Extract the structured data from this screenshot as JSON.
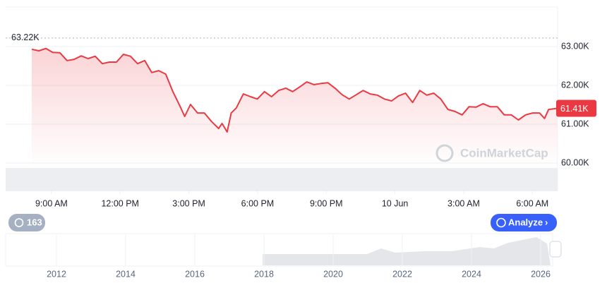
{
  "chart_data": {
    "type": "line",
    "color": "#ea3943",
    "x": [
      8.14,
      8.45,
      8.76,
      9.06,
      9.37,
      9.68,
      9.99,
      10.3,
      10.6,
      10.91,
      11.22,
      11.53,
      11.84,
      12.14,
      12.45,
      12.76,
      13.07,
      13.38,
      13.68,
      13.99,
      14.3,
      14.61,
      14.82,
      15.07,
      15.38,
      15.68,
      15.99,
      16.3,
      16.45,
      16.67,
      16.85,
      17.07,
      17.38,
      17.69,
      17.99,
      18.3,
      18.61,
      18.92,
      19.23,
      19.53,
      19.84,
      20.15,
      20.46,
      20.77,
      21.07,
      21.38,
      21.69,
      22.0,
      22.31,
      22.61,
      22.92,
      23.23,
      23.54,
      23.85,
      24.15,
      24.46,
      24.77,
      25.08,
      25.39,
      25.69,
      26.0,
      26.31,
      26.62,
      26.93,
      27.23,
      27.54,
      27.85,
      28.16,
      28.47,
      28.77,
      29.08,
      29.39,
      29.7,
      30.01,
      30.31,
      30.53,
      30.71,
      31.08
    ],
    "values": [
      62930,
      62890,
      62950,
      62850,
      62840,
      62640,
      62670,
      62760,
      62690,
      62750,
      62560,
      62600,
      62600,
      62800,
      62750,
      62560,
      62640,
      62330,
      62380,
      62290,
      61840,
      61470,
      61200,
      61510,
      61290,
      61290,
      61070,
      60890,
      61020,
      60800,
      61290,
      61420,
      61780,
      61710,
      61650,
      61840,
      61710,
      61870,
      61930,
      61840,
      61960,
      62090,
      62020,
      62050,
      62070,
      61930,
      61760,
      61650,
      61760,
      61870,
      61780,
      61750,
      61650,
      61600,
      61730,
      61800,
      61560,
      61870,
      61750,
      61800,
      61650,
      61380,
      61330,
      61240,
      61450,
      61440,
      61530,
      61450,
      61450,
      61240,
      61240,
      61110,
      61240,
      61290,
      61290,
      61150,
      61380,
      61410
    ],
    "xlim": [
      7,
      31.1
    ],
    "xticks": [
      {
        "value": 9,
        "label": "9:00 AM"
      },
      {
        "value": 12,
        "label": "12:00 PM"
      },
      {
        "value": 15,
        "label": "3:00 PM"
      },
      {
        "value": 18,
        "label": "6:00 PM"
      },
      {
        "value": 21,
        "label": "9:00 PM"
      },
      {
        "value": 24,
        "label": "10 Jun"
      },
      {
        "value": 27,
        "label": "3:00 AM"
      },
      {
        "value": 30,
        "label": "6:00 AM"
      }
    ],
    "ylim": [
      59273,
      64018
    ],
    "yticks": [
      {
        "value": 60000,
        "label": "60.00K"
      },
      {
        "value": 61000,
        "label": "61.00K"
      },
      {
        "value": 62000,
        "label": "62.00K"
      },
      {
        "value": 63000,
        "label": "63.00K"
      }
    ],
    "grid": true,
    "reference_line": {
      "value": 63220,
      "label": "63.22K"
    },
    "last_price": {
      "value": 61410,
      "label": "61.41K"
    },
    "watermark": "CoinMarketCap",
    "history_badge": "163",
    "analyze_button": "Analyze",
    "navigator_years": [
      "2012",
      "2014",
      "2016",
      "2018",
      "2020",
      "2022",
      "2024",
      "2026"
    ]
  }
}
